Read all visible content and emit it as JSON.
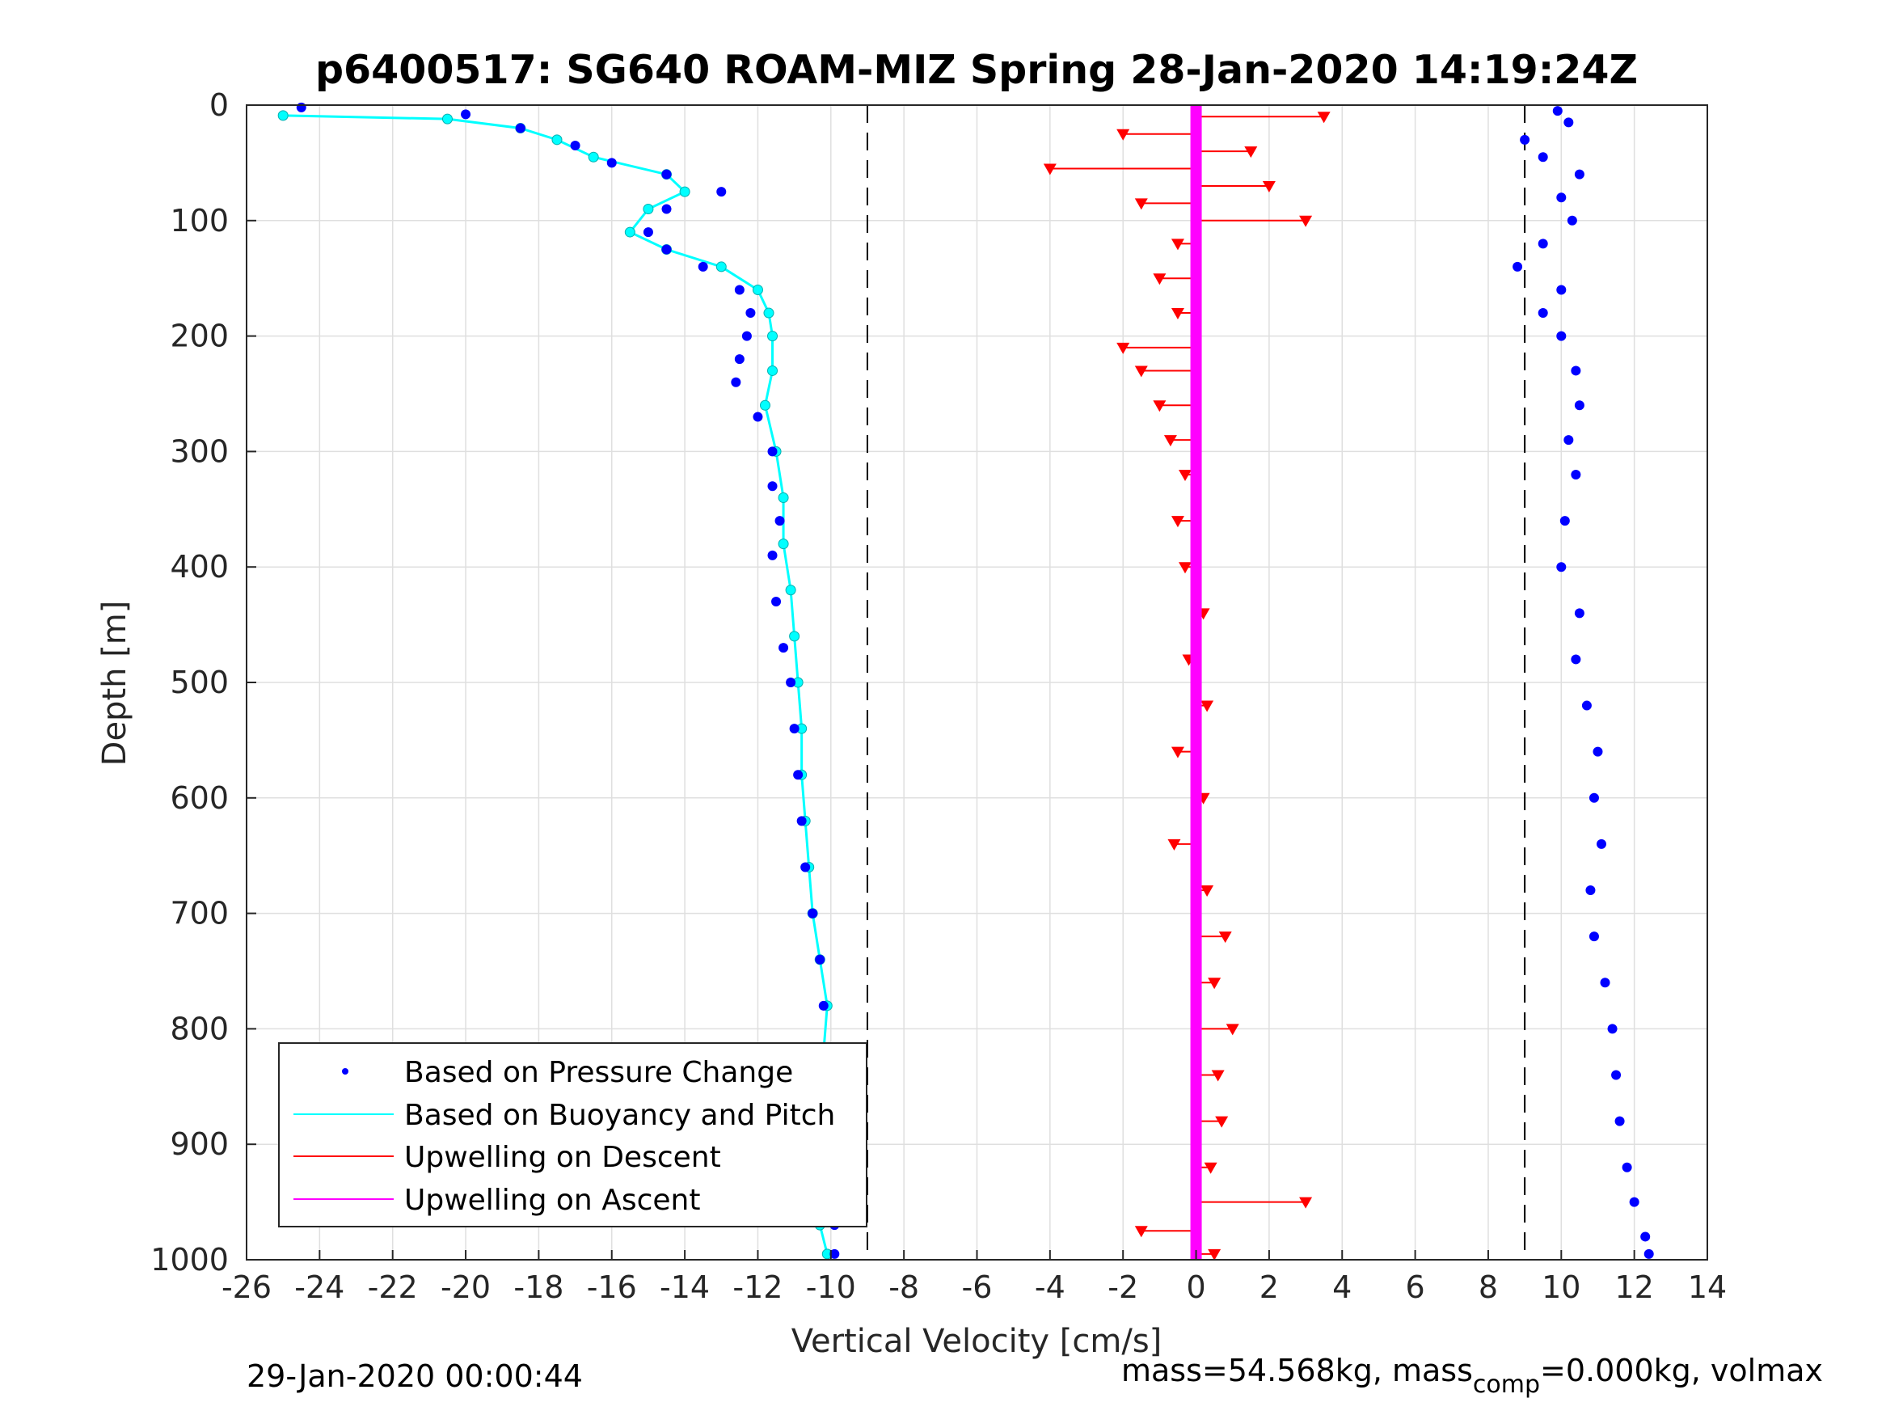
{
  "chart_data": {
    "type": "scatter",
    "title": "p6400517: SG640 ROAM-MIZ Spring 28-Jan-2020 14:19:24Z",
    "xlabel": "Vertical Velocity [cm/s]",
    "ylabel": "Depth [m]",
    "xlim": [
      -26,
      14
    ],
    "ylim": [
      0,
      1000
    ],
    "y_reversed": true,
    "grid": true,
    "x_ticks": [
      "-26",
      "-24",
      "-22",
      "-20",
      "-18",
      "-16",
      "-14",
      "-12",
      "-10",
      "-8",
      "-6",
      "-4",
      "-2",
      "0",
      "2",
      "4",
      "6",
      "8",
      "10",
      "12",
      "14"
    ],
    "y_ticks": [
      "0",
      "100",
      "200",
      "300",
      "400",
      "500",
      "600",
      "700",
      "800",
      "900",
      "1000"
    ],
    "reference_lines_x": [
      -9,
      9
    ],
    "legend": {
      "position": "bottom-left",
      "entries": [
        {
          "label": "Based on Pressure Change",
          "color": "#0000ff",
          "style": "dot"
        },
        {
          "label": "Based on Buoyancy and Pitch",
          "color": "#00ffff",
          "style": "line"
        },
        {
          "label": "Upwelling on Descent",
          "color": "#ff0000",
          "style": "line"
        },
        {
          "label": "Upwelling on Ascent",
          "color": "#ff00ff",
          "style": "line"
        }
      ]
    },
    "series": [
      {
        "name": "Based on Pressure Change",
        "color": "#0000ff",
        "profiles": [
          {
            "leg": "descent",
            "depth": [
              2,
              8,
              20,
              35,
              50,
              60,
              75,
              90,
              110,
              125,
              140,
              160,
              180,
              200,
              220,
              240,
              270,
              300,
              330,
              360,
              390,
              430,
              470,
              500,
              540,
              580,
              620,
              660,
              700,
              740,
              780,
              820,
              860,
              900,
              940,
              970,
              995
            ],
            "velocity": [
              -24.5,
              -20,
              -18.5,
              -17,
              -16,
              -14.5,
              -13,
              -14.5,
              -15,
              -14.5,
              -13.5,
              -12.5,
              -12.2,
              -12.3,
              -12.5,
              -12.6,
              -12,
              -11.6,
              -11.6,
              -11.4,
              -11.6,
              -11.5,
              -11.3,
              -11.1,
              -11,
              -10.9,
              -10.8,
              -10.7,
              -10.5,
              -10.3,
              -10.2,
              -10,
              -9.9,
              -9.8,
              -9.7,
              -9.9,
              -9.9
            ]
          },
          {
            "leg": "ascent",
            "depth": [
              5,
              15,
              30,
              45,
              60,
              80,
              100,
              120,
              140,
              160,
              180,
              200,
              230,
              260,
              290,
              320,
              360,
              400,
              440,
              480,
              520,
              560,
              600,
              640,
              680,
              720,
              760,
              800,
              840,
              880,
              920,
              950,
              980,
              995
            ],
            "velocity": [
              9.9,
              10.2,
              9,
              9.5,
              10.5,
              10,
              10.3,
              9.5,
              8.8,
              10,
              9.5,
              10,
              10.4,
              10.5,
              10.2,
              10.4,
              10.1,
              10,
              10.5,
              10.4,
              10.7,
              11,
              10.9,
              11.1,
              10.8,
              10.9,
              11.2,
              11.4,
              11.5,
              11.6,
              11.8,
              12,
              12.3,
              12.4
            ]
          }
        ]
      },
      {
        "name": "Based on Buoyancy and Pitch",
        "color": "#00ffff",
        "depth": [
          9,
          12,
          20,
          30,
          45,
          60,
          75,
          90,
          110,
          125,
          140,
          160,
          180,
          200,
          230,
          260,
          300,
          340,
          380,
          420,
          460,
          500,
          540,
          580,
          620,
          660,
          700,
          740,
          780,
          820,
          860,
          900,
          940,
          970,
          995
        ],
        "velocity": [
          -25,
          -20.5,
          -18.5,
          -17.5,
          -16.5,
          -14.5,
          -14,
          -15,
          -15.5,
          -14.5,
          -13,
          -12,
          -11.7,
          -11.6,
          -11.6,
          -11.8,
          -11.5,
          -11.3,
          -11.3,
          -11.1,
          -11,
          -10.9,
          -10.8,
          -10.8,
          -10.7,
          -10.6,
          -10.5,
          -10.3,
          -10.1,
          -10.2,
          -10,
          -9.9,
          -9.9,
          -10.3,
          -10.1
        ]
      },
      {
        "name": "Upwelling on Descent",
        "color": "#ff0000",
        "depth": [
          10,
          25,
          40,
          55,
          70,
          85,
          100,
          120,
          150,
          180,
          210,
          230,
          260,
          290,
          320,
          360,
          400,
          440,
          480,
          520,
          560,
          600,
          640,
          680,
          720,
          760,
          800,
          840,
          880,
          920,
          950,
          975,
          995
        ],
        "velocity": [
          3.5,
          -2,
          1.5,
          -4,
          2,
          -1.5,
          3,
          -0.5,
          -1,
          -0.5,
          -2,
          -1.5,
          -1,
          -0.7,
          -0.3,
          -0.5,
          -0.3,
          0.2,
          -0.2,
          0.3,
          -0.5,
          0.2,
          -0.6,
          0.3,
          0.8,
          0.5,
          1,
          0.6,
          0.7,
          0.4,
          3,
          -1.5,
          0.5
        ]
      },
      {
        "name": "Upwelling on Ascent",
        "color": "#ff00ff",
        "depth": [
          0,
          1000
        ],
        "velocity": [
          0,
          0
        ]
      }
    ],
    "annotations": {
      "timestamp": "29-Jan-2020 00:00:44",
      "mass_text": "mass=54.568kg, mass",
      "mass_sub": "comp",
      "mass_rest": "=0.000kg, volmax"
    }
  }
}
